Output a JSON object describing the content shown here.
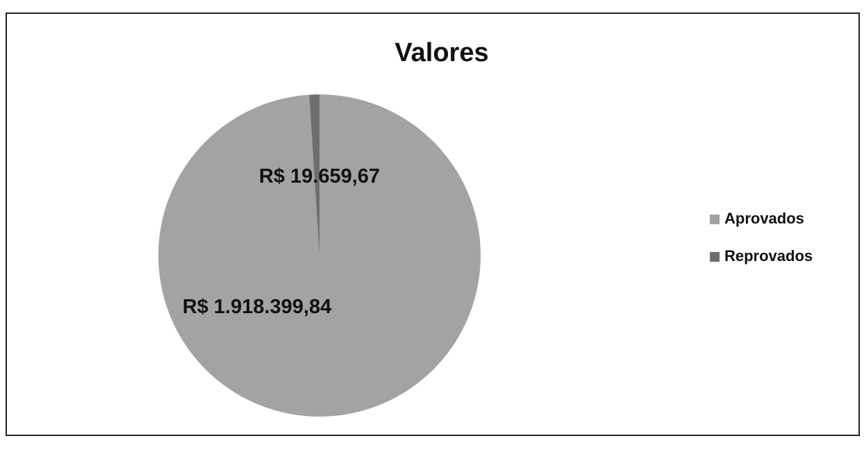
{
  "chart_data": {
    "type": "pie",
    "title": "Valores",
    "categories": [
      "Aprovados",
      "Reprovados"
    ],
    "values": [
      1918399.84,
      19659.67
    ],
    "value_labels": [
      "R$ 1.918.399,84",
      "R$ 19.659,67"
    ],
    "colors": [
      "#a3a3a3",
      "#6e6e6e"
    ],
    "legend": "right"
  }
}
